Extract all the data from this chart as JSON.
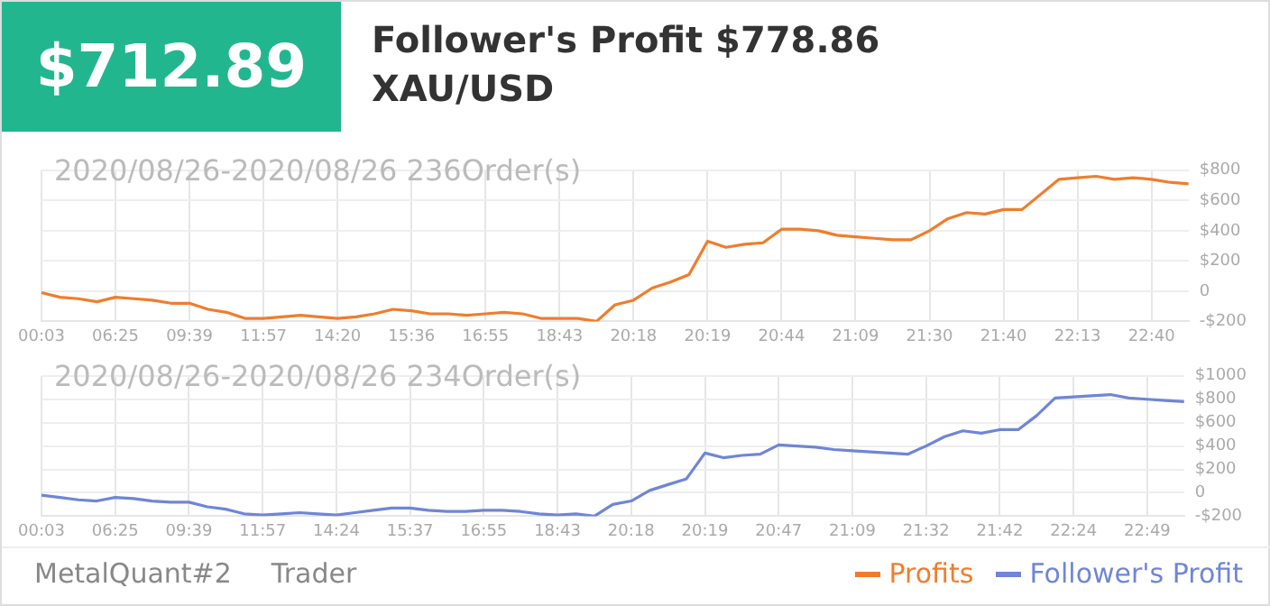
{
  "chart_data": [
    {
      "type": "line",
      "title": "Follower's Profit $778.86",
      "subtitle": "XAU/USD",
      "annotations": [
        "2020/08/26-2020/08/26 236Order(s)",
        "$712.89",
        "MetalQuant#2",
        "Trader"
      ],
      "categories": [
        "00:03",
        null,
        null,
        null,
        "06:25",
        null,
        null,
        null,
        "09:39",
        null,
        null,
        null,
        "11:57",
        null,
        null,
        null,
        "14:20",
        null,
        null,
        null,
        "15:36",
        null,
        null,
        null,
        "16:55",
        null,
        null,
        null,
        "18:43",
        null,
        null,
        null,
        "20:18",
        null,
        null,
        null,
        "20:19",
        null,
        null,
        null,
        "20:44",
        null,
        null,
        null,
        "21:09",
        null,
        null,
        null,
        "21:30",
        null,
        null,
        null,
        "21:40",
        null,
        null,
        null,
        "22:13",
        null,
        null,
        null,
        "22:40",
        null,
        null
      ],
      "series": [
        {
          "name": "Profits",
          "color": "#f07d2c",
          "values": [
            -10,
            -40,
            -50,
            -70,
            -40,
            -50,
            -60,
            -80,
            -80,
            -120,
            -140,
            -180,
            -180,
            -170,
            -160,
            -170,
            -180,
            -170,
            -150,
            -120,
            -130,
            -150,
            -150,
            -160,
            -150,
            -140,
            -150,
            -180,
            -180,
            -180,
            -200,
            -90,
            -60,
            20,
            60,
            110,
            330,
            290,
            310,
            320,
            410,
            410,
            400,
            370,
            360,
            350,
            340,
            340,
            400,
            480,
            520,
            510,
            540,
            540,
            640,
            740,
            750,
            760,
            740,
            750,
            740,
            720,
            710
          ]
        }
      ],
      "ylim": [
        -200,
        800
      ],
      "yticks": [
        {
          "value": -200,
          "label": "-$200"
        },
        0,
        {
          "value": 200,
          "label": "$200"
        },
        {
          "value": 400,
          "label": "$400"
        },
        {
          "value": 600,
          "label": "$600"
        },
        {
          "value": 800,
          "label": "$800"
        }
      ],
      "grid": true,
      "legend": "bottom right"
    },
    {
      "type": "line",
      "annotations": [
        "2020/08/26-2020/08/26 234Order(s)"
      ],
      "categories": [
        "00:03",
        null,
        null,
        null,
        "06:25",
        null,
        null,
        null,
        "09:39",
        null,
        null,
        null,
        "11:57",
        null,
        null,
        null,
        "14:24",
        null,
        null,
        null,
        "15:37",
        null,
        null,
        null,
        "16:55",
        null,
        null,
        null,
        "18:43",
        null,
        null,
        null,
        "20:18",
        null,
        null,
        null,
        "20:19",
        null,
        null,
        null,
        "20:47",
        null,
        null,
        null,
        "21:09",
        null,
        null,
        null,
        "21:32",
        null,
        null,
        null,
        "21:42",
        null,
        null,
        null,
        "22:24",
        null,
        null,
        null,
        "22:49",
        null,
        null
      ],
      "series": [
        {
          "name": "Follower's Profit",
          "color": "#6f86d6",
          "values": [
            -20,
            -40,
            -60,
            -70,
            -40,
            -50,
            -70,
            -80,
            -80,
            -120,
            -140,
            -180,
            -190,
            -180,
            -170,
            -180,
            -190,
            -170,
            -150,
            -130,
            -130,
            -150,
            -160,
            -160,
            -150,
            -150,
            -160,
            -180,
            -190,
            -180,
            -200,
            -100,
            -70,
            20,
            70,
            120,
            340,
            300,
            320,
            330,
            410,
            400,
            390,
            370,
            360,
            350,
            340,
            330,
            400,
            480,
            530,
            510,
            540,
            540,
            660,
            810,
            820,
            830,
            840,
            810,
            800,
            790,
            780
          ]
        }
      ],
      "ylim": [
        -200,
        1000
      ],
      "yticks": [
        {
          "value": -200,
          "label": "-$200"
        },
        0,
        {
          "value": 200,
          "label": "$200"
        },
        {
          "value": 400,
          "label": "$400"
        },
        {
          "value": 600,
          "label": "$600"
        },
        {
          "value": 800,
          "label": "$800"
        },
        {
          "value": 1000,
          "label": "$1000"
        }
      ],
      "grid": true,
      "legend": "bottom right"
    }
  ]
}
